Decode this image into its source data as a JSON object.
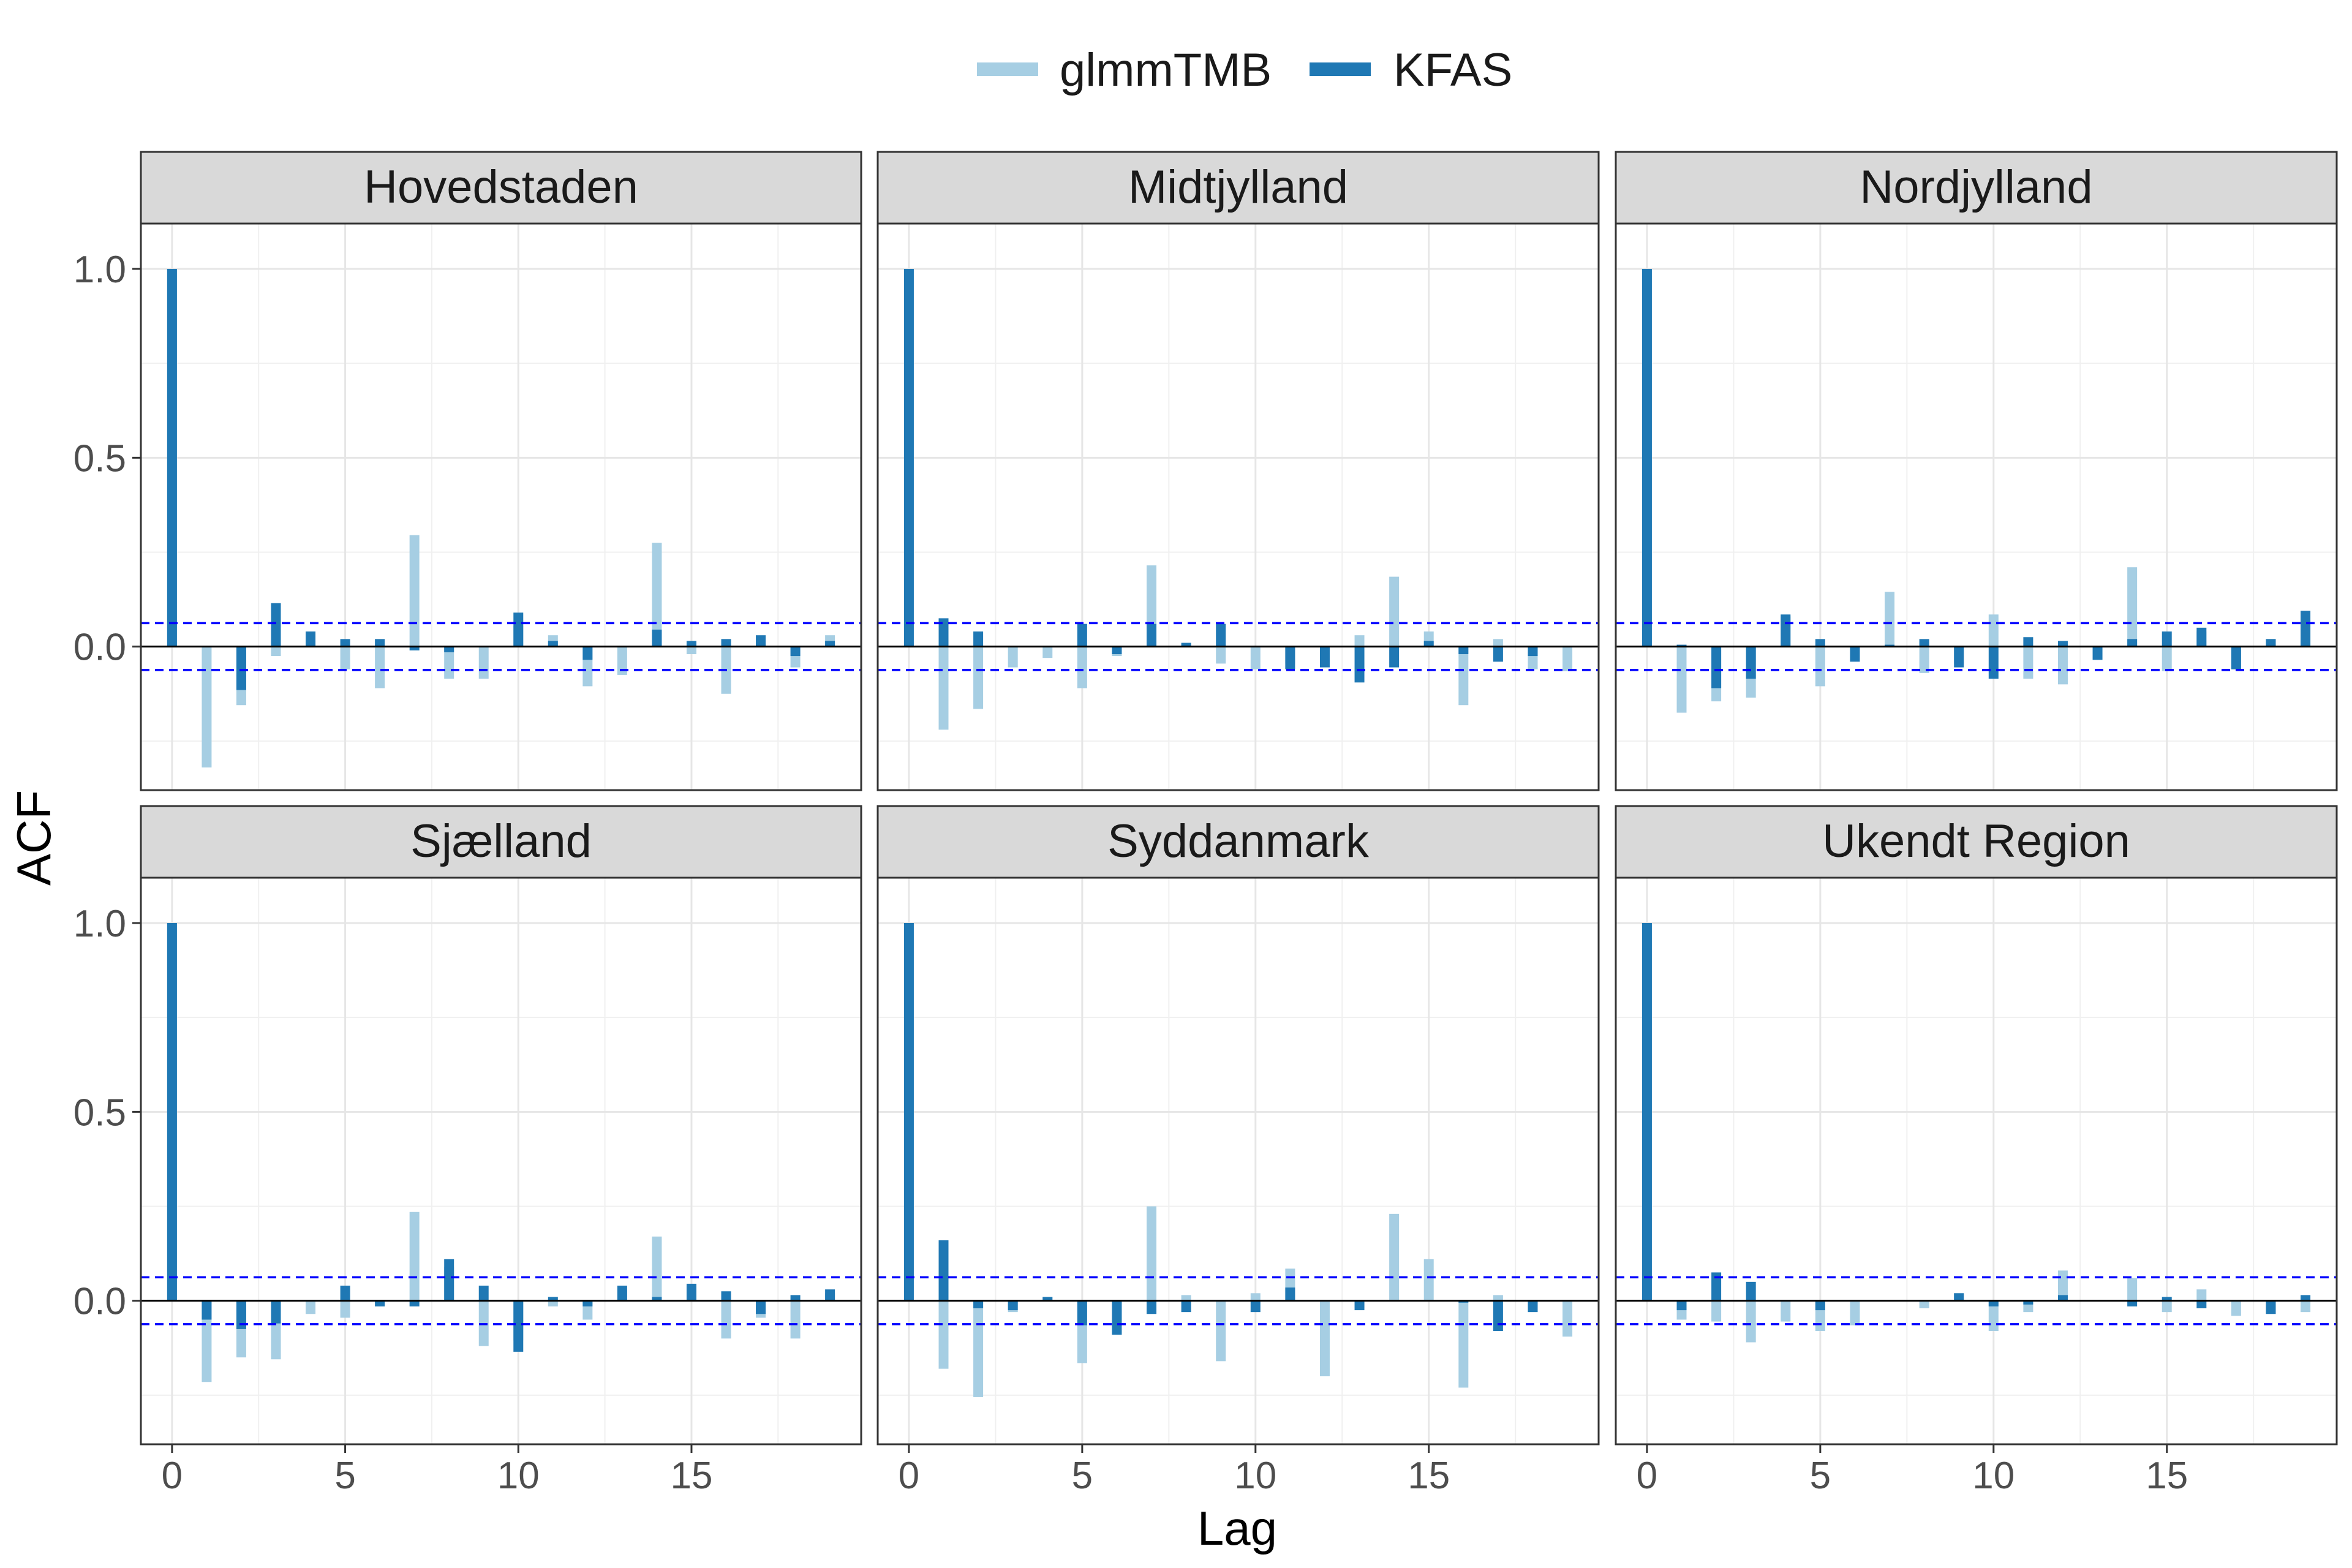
{
  "chart_data": {
    "type": "bar",
    "xlabel": "Lag",
    "ylabel": "ACF",
    "xlim": [
      -0.9,
      19.9
    ],
    "ylim": [
      -0.38,
      1.12
    ],
    "x_ticks": [
      0,
      5,
      10,
      15
    ],
    "y_ticks": [
      0.0,
      0.5,
      1.0
    ],
    "y_tick_labels": [
      "0.0",
      "0.5",
      "1.0"
    ],
    "grid": true,
    "legend_position": "top",
    "confidence_band": 0.062,
    "lags": [
      0,
      1,
      2,
      3,
      4,
      5,
      6,
      7,
      8,
      9,
      10,
      11,
      12,
      13,
      14,
      15,
      16,
      17,
      18,
      19
    ],
    "series": [
      {
        "name": "glmmTMB",
        "color": "#a6cee3"
      },
      {
        "name": "KFAS",
        "color": "#1f78b4"
      }
    ],
    "panels": [
      {
        "name": "Hovedstaden",
        "glmmTMB": [
          1.0,
          -0.32,
          -0.155,
          -0.025,
          0.015,
          -0.06,
          -0.11,
          0.295,
          -0.085,
          -0.085,
          0.055,
          0.03,
          -0.105,
          -0.075,
          0.275,
          -0.02,
          -0.125,
          0.01,
          -0.055,
          0.03
        ],
        "KFAS": [
          1.0,
          0.0,
          -0.115,
          0.115,
          0.04,
          0.02,
          0.02,
          -0.01,
          -0.015,
          0.0,
          0.09,
          0.015,
          -0.035,
          0.0,
          0.045,
          0.015,
          0.02,
          0.03,
          -0.025,
          0.015
        ]
      },
      {
        "name": "Midtjylland",
        "glmmTMB": [
          1.0,
          -0.22,
          -0.165,
          -0.055,
          -0.03,
          -0.11,
          -0.025,
          0.215,
          0.005,
          -0.045,
          -0.06,
          -0.045,
          -0.045,
          0.03,
          0.185,
          0.04,
          -0.155,
          0.02,
          -0.06,
          -0.065
        ],
        "KFAS": [
          1.0,
          0.075,
          0.04,
          0.0,
          0.0,
          0.06,
          -0.02,
          0.06,
          0.01,
          0.06,
          0.0,
          -0.06,
          -0.055,
          -0.095,
          -0.055,
          0.015,
          -0.02,
          -0.04,
          -0.025,
          0.0
        ]
      },
      {
        "name": "Nordjylland",
        "glmmTMB": [
          1.0,
          -0.175,
          -0.145,
          -0.135,
          0.08,
          -0.105,
          -0.035,
          0.145,
          -0.07,
          -0.045,
          0.085,
          -0.085,
          -0.1,
          -0.035,
          0.21,
          -0.065,
          0.04,
          -0.06,
          0.02,
          0.06
        ],
        "KFAS": [
          1.0,
          0.005,
          -0.11,
          -0.085,
          0.085,
          0.02,
          -0.04,
          0.005,
          0.02,
          -0.055,
          -0.085,
          0.025,
          0.015,
          -0.035,
          0.02,
          0.04,
          0.05,
          -0.06,
          0.02,
          0.095
        ]
      },
      {
        "name": "Sjælland",
        "glmmTMB": [
          1.0,
          -0.215,
          -0.15,
          -0.155,
          -0.035,
          -0.045,
          -0.015,
          0.235,
          0.09,
          -0.12,
          -0.105,
          -0.015,
          -0.05,
          0.03,
          0.17,
          0.04,
          -0.1,
          -0.045,
          -0.1,
          0.02
        ],
        "KFAS": [
          1.0,
          -0.05,
          -0.075,
          -0.06,
          0.0,
          0.04,
          -0.015,
          -0.015,
          0.11,
          0.04,
          -0.135,
          0.01,
          -0.015,
          0.04,
          0.01,
          0.045,
          0.025,
          -0.035,
          0.015,
          0.03
        ]
      },
      {
        "name": "Syddanmark",
        "glmmTMB": [
          1.0,
          -0.18,
          -0.255,
          -0.03,
          0.01,
          -0.165,
          -0.075,
          0.25,
          0.015,
          -0.16,
          0.02,
          0.085,
          -0.2,
          -0.02,
          0.23,
          0.11,
          -0.23,
          0.015,
          -0.02,
          -0.095
        ],
        "KFAS": [
          1.0,
          0.16,
          -0.02,
          -0.025,
          0.01,
          -0.065,
          -0.09,
          -0.035,
          -0.03,
          0.0,
          -0.03,
          0.035,
          0.0,
          -0.025,
          0.0,
          0.0,
          -0.005,
          -0.08,
          -0.03,
          0.0
        ]
      },
      {
        "name": "Ukendt Region",
        "glmmTMB": [
          1.0,
          -0.05,
          -0.055,
          -0.11,
          -0.055,
          -0.08,
          -0.065,
          0.0,
          -0.02,
          0.02,
          -0.08,
          -0.03,
          0.08,
          0.0,
          0.06,
          -0.03,
          0.03,
          -0.04,
          -0.02,
          -0.03
        ],
        "KFAS": [
          1.0,
          -0.025,
          0.075,
          0.05,
          0.0,
          -0.025,
          0.0,
          0.0,
          0.0,
          0.02,
          -0.015,
          -0.01,
          0.015,
          0.0,
          -0.015,
          0.01,
          -0.02,
          0.0,
          -0.035,
          0.015
        ]
      }
    ]
  }
}
